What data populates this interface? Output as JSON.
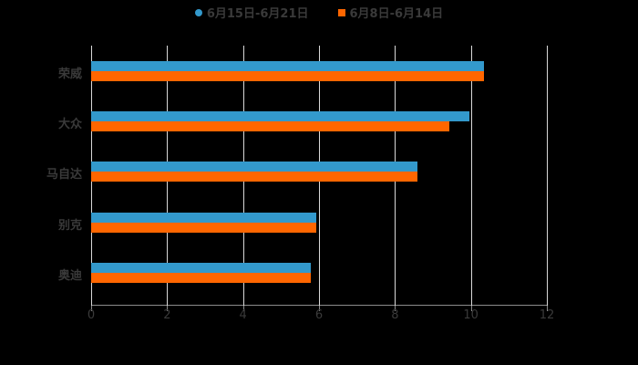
{
  "chart_data": {
    "type": "bar",
    "orientation": "horizontal",
    "title": "",
    "xlabel": "",
    "ylabel": "",
    "categories": [
      "荣威",
      "大众",
      "马自达",
      "别克",
      "奥迪"
    ],
    "series": [
      {
        "name": "6月15日-6月21日",
        "color": "#3399cc",
        "values": [
          10.34,
          9.96,
          8.59,
          5.93,
          5.78
        ]
      },
      {
        "name": "6月8日-6月14日",
        "color": "#ff6600",
        "values": [
          10.34,
          9.43,
          8.59,
          5.93,
          5.78
        ]
      }
    ],
    "xlim": [
      0,
      12
    ],
    "x_ticks": [
      "0",
      "2",
      "4",
      "6",
      "8",
      "10",
      "12"
    ],
    "grid": "vertical",
    "legend_position": "top"
  },
  "legend": {
    "items": [
      {
        "label": "6月15日-6月21日",
        "color": "#3399cc",
        "marker": "circle"
      },
      {
        "label": "6月8日-6月14日",
        "color": "#ff6600",
        "marker": "square"
      }
    ]
  }
}
